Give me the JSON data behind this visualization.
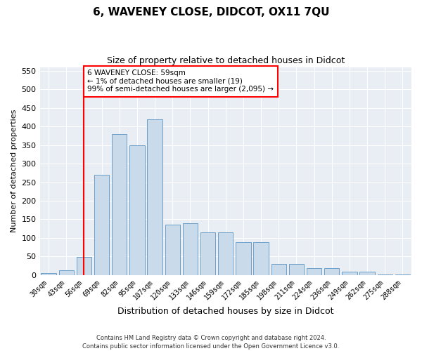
{
  "title": "6, WAVENEY CLOSE, DIDCOT, OX11 7QU",
  "subtitle": "Size of property relative to detached houses in Didcot",
  "xlabel": "Distribution of detached houses by size in Didcot",
  "ylabel": "Number of detached properties",
  "categories": [
    "30sqm",
    "43sqm",
    "56sqm",
    "69sqm",
    "82sqm",
    "95sqm",
    "107sqm",
    "120sqm",
    "133sqm",
    "146sqm",
    "159sqm",
    "172sqm",
    "185sqm",
    "198sqm",
    "211sqm",
    "224sqm",
    "236sqm",
    "249sqm",
    "262sqm",
    "275sqm",
    "288sqm"
  ],
  "values": [
    5,
    12,
    48,
    270,
    380,
    350,
    420,
    135,
    140,
    115,
    115,
    88,
    88,
    30,
    30,
    18,
    18,
    10,
    10,
    2,
    2
  ],
  "bar_color": "#c9daea",
  "bar_edge_color": "#6b9ec8",
  "vline_x_index": 2,
  "vline_color": "red",
  "annotation_text": "6 WAVENEY CLOSE: 59sqm\n← 1% of detached houses are smaller (19)\n99% of semi-detached houses are larger (2,095) →",
  "annotation_box_color": "white",
  "annotation_box_edge_color": "red",
  "ylim": [
    0,
    560
  ],
  "yticks": [
    0,
    50,
    100,
    150,
    200,
    250,
    300,
    350,
    400,
    450,
    500,
    550
  ],
  "bg_color": "#e8eef4",
  "footer": "Contains HM Land Registry data © Crown copyright and database right 2024.\nContains public sector information licensed under the Open Government Licence v3.0.",
  "title_fontsize": 11,
  "subtitle_fontsize": 9,
  "xlabel_fontsize": 9,
  "ylabel_fontsize": 8,
  "annot_fontsize": 7.5
}
